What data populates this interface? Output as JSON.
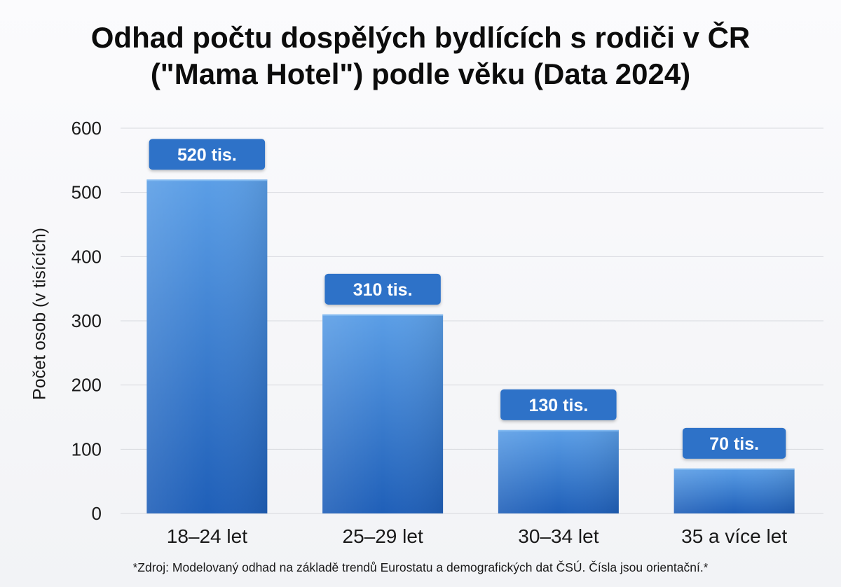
{
  "chart_data": {
    "type": "bar",
    "title_line1": "Odhad počtu dospělých bydlících s rodiči v ČR",
    "title_line2": "(\"Mama Hotel\") podle věku (Data 2024)",
    "ylabel": "Počet osob (v tisících)",
    "xlabel": "",
    "categories": [
      "18–24 let",
      "25–29 let",
      "30–34 let",
      "35 a více let"
    ],
    "values": [
      520,
      310,
      130,
      70
    ],
    "data_labels": [
      "520 tis.",
      "310 tis.",
      "130 tis.",
      "70 tis."
    ],
    "ylim": [
      0,
      600
    ],
    "yticks": [
      0,
      100,
      200,
      300,
      400,
      500,
      600
    ],
    "grid": true,
    "legend": "none",
    "colors": {
      "bar_top": "#5b9ee6",
      "bar_bottom": "#1f5fb8",
      "label_bg": "#2d72c8",
      "grid": "#d7d9de"
    }
  },
  "source_note": "*Zdroj: Modelovaný odhad na základě trendů Eurostatu a demografických dat ČSÚ. Čísla jsou orientační.*"
}
